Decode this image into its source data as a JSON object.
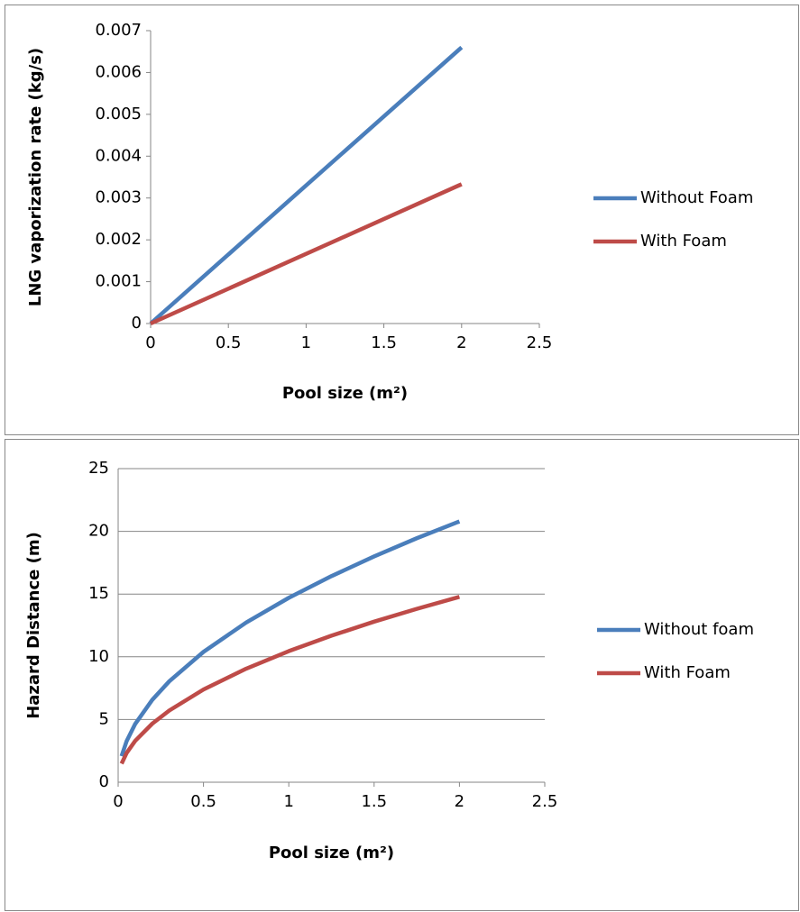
{
  "chart_data": [
    {
      "type": "line",
      "xlabel": "Pool size (m²)",
      "ylabel": "LNG vaporization rate (kg/s)",
      "xlim": [
        0,
        2.5
      ],
      "xticks": [
        0,
        0.5,
        1,
        1.5,
        2,
        2.5
      ],
      "ylim": [
        0,
        0.007
      ],
      "yticks": [
        0,
        0.001,
        0.002,
        0.003,
        0.004,
        0.005,
        0.006,
        0.007
      ],
      "grid": false,
      "legend": "right",
      "x": [
        0,
        2
      ],
      "series": [
        {
          "name": "Without Foam",
          "color": "#4a7ebb",
          "values": [
            0,
            0.0066
          ]
        },
        {
          "name": "With Foam",
          "color": "#be4b48",
          "values": [
            0,
            0.00333
          ]
        }
      ]
    },
    {
      "type": "line",
      "xlabel": "Pool size (m²)",
      "ylabel": "Hazard Distance (m)",
      "xlim": [
        0,
        2.5
      ],
      "xticks": [
        0,
        0.5,
        1,
        1.5,
        2,
        2.5
      ],
      "ylim": [
        0,
        25
      ],
      "yticks": [
        0,
        5,
        10,
        15,
        20,
        25
      ],
      "grid": true,
      "legend": "right",
      "x": [
        0.02,
        0.05,
        0.1,
        0.2,
        0.3,
        0.5,
        0.75,
        1,
        1.25,
        1.5,
        1.75,
        2
      ],
      "series": [
        {
          "name": "Without foam",
          "color": "#4a7ebb",
          "values": [
            2.08,
            3.29,
            4.65,
            6.57,
            8.05,
            10.39,
            12.73,
            14.7,
            16.43,
            18.0,
            19.45,
            20.79
          ]
        },
        {
          "name": "With Foam",
          "color": "#be4b48",
          "values": [
            1.48,
            2.34,
            3.3,
            4.67,
            5.72,
            7.39,
            9.05,
            10.45,
            11.68,
            12.8,
            13.82,
            14.78
          ]
        }
      ]
    }
  ]
}
